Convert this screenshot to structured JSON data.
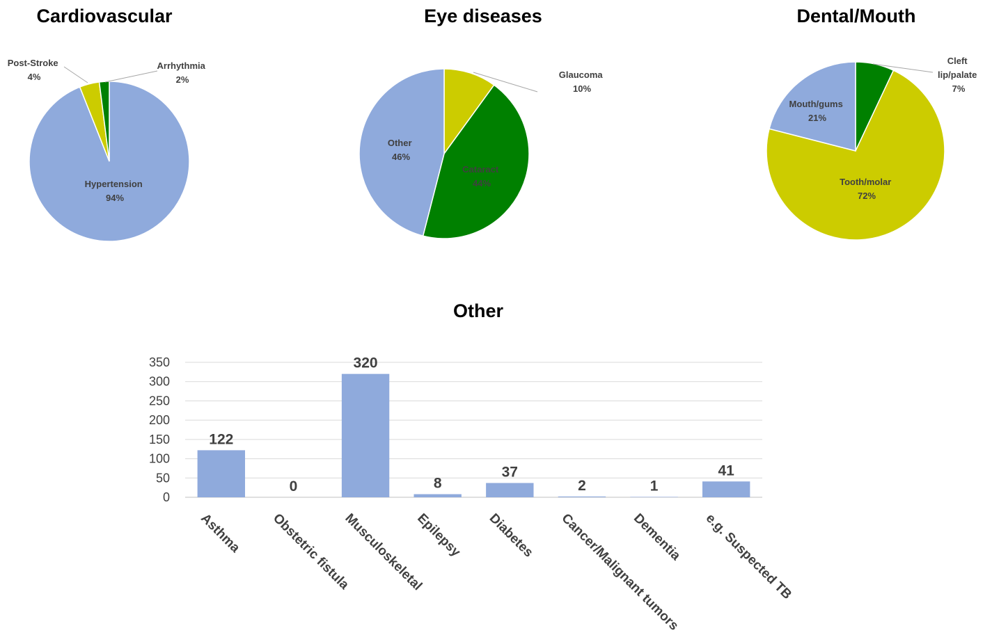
{
  "chart_data": [
    {
      "type": "pie",
      "title": "Cardiovascular",
      "slices": [
        {
          "label": "Hypertension",
          "value": 94,
          "display": "94%",
          "color": "#8faadc"
        },
        {
          "label": "Post-Stroke",
          "value": 4,
          "display": "4%",
          "color": "#cccc00"
        },
        {
          "label": "Arrhythmia",
          "value": 2,
          "display": "2%",
          "color": "#008000"
        }
      ]
    },
    {
      "type": "pie",
      "title": "Eye diseases",
      "slices": [
        {
          "label": "Glaucoma",
          "value": 10,
          "display": "10%",
          "color": "#cccc00"
        },
        {
          "label": "Cataract",
          "value": 44,
          "display": "44%",
          "color": "#008000"
        },
        {
          "label": "Other",
          "value": 46,
          "display": "46%",
          "color": "#8faadc"
        }
      ]
    },
    {
      "type": "pie",
      "title": "Dental/Mouth",
      "slices": [
        {
          "label": "Cleft lip/palate",
          "value": 7,
          "display": "7%",
          "color": "#008000"
        },
        {
          "label": "Tooth/molar",
          "value": 72,
          "display": "72%",
          "color": "#cccc00"
        },
        {
          "label": "Mouth/gums",
          "value": 21,
          "display": "21%",
          "color": "#8faadc"
        }
      ]
    },
    {
      "type": "bar",
      "title": "Other",
      "categories": [
        "Asthma",
        "Obstetric fistula",
        "Musculoskeletal",
        "Epilepsy",
        "Diabetes",
        "Cancer/Malignant tumors",
        "Dementia",
        "e.g. Suspected TB"
      ],
      "values": [
        122,
        0,
        320,
        8,
        37,
        2,
        1,
        41
      ],
      "ylim": [
        0,
        350
      ],
      "yticks": [
        0,
        50,
        100,
        150,
        200,
        250,
        300,
        350
      ],
      "grid": true,
      "color": "#8faadc"
    }
  ]
}
